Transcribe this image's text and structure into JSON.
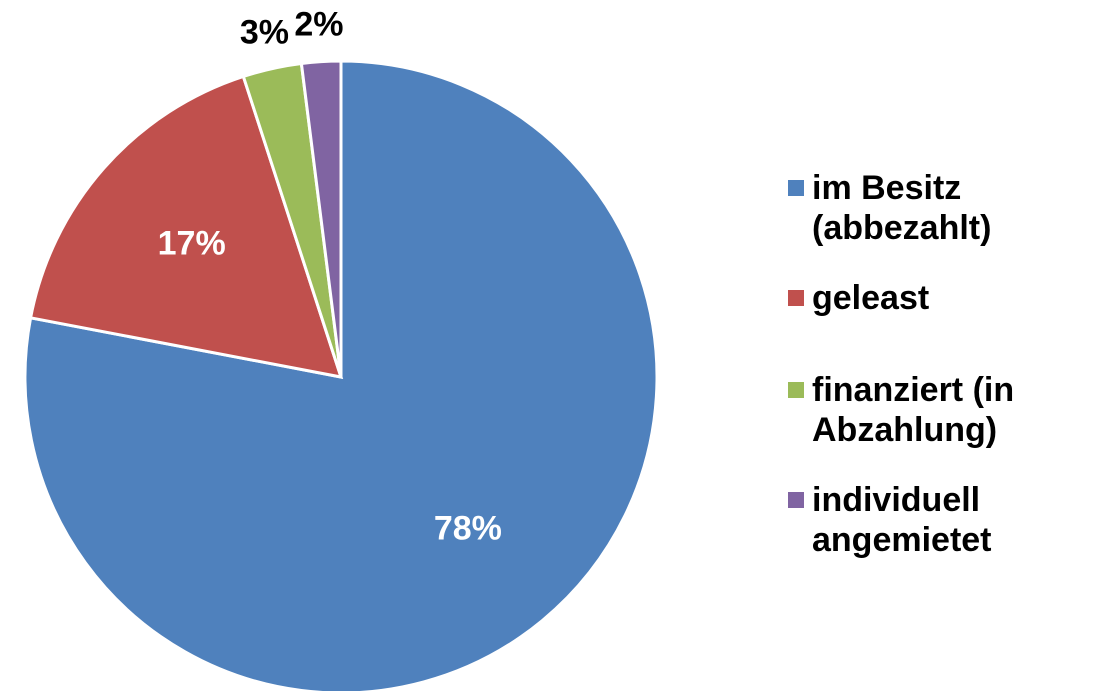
{
  "chart_data": {
    "type": "pie",
    "categories": [
      "im Besitz (abbezahlt)",
      "geleast",
      "finanziert (in Abzahlung)",
      "individuell angemietet"
    ],
    "values": [
      78,
      17,
      3,
      2
    ],
    "value_labels": [
      "78%",
      "17%",
      "3%",
      "2%"
    ],
    "colors": [
      "#4f81bd",
      "#c0504d",
      "#9bbb59",
      "#8064a2"
    ],
    "legend": "right"
  }
}
